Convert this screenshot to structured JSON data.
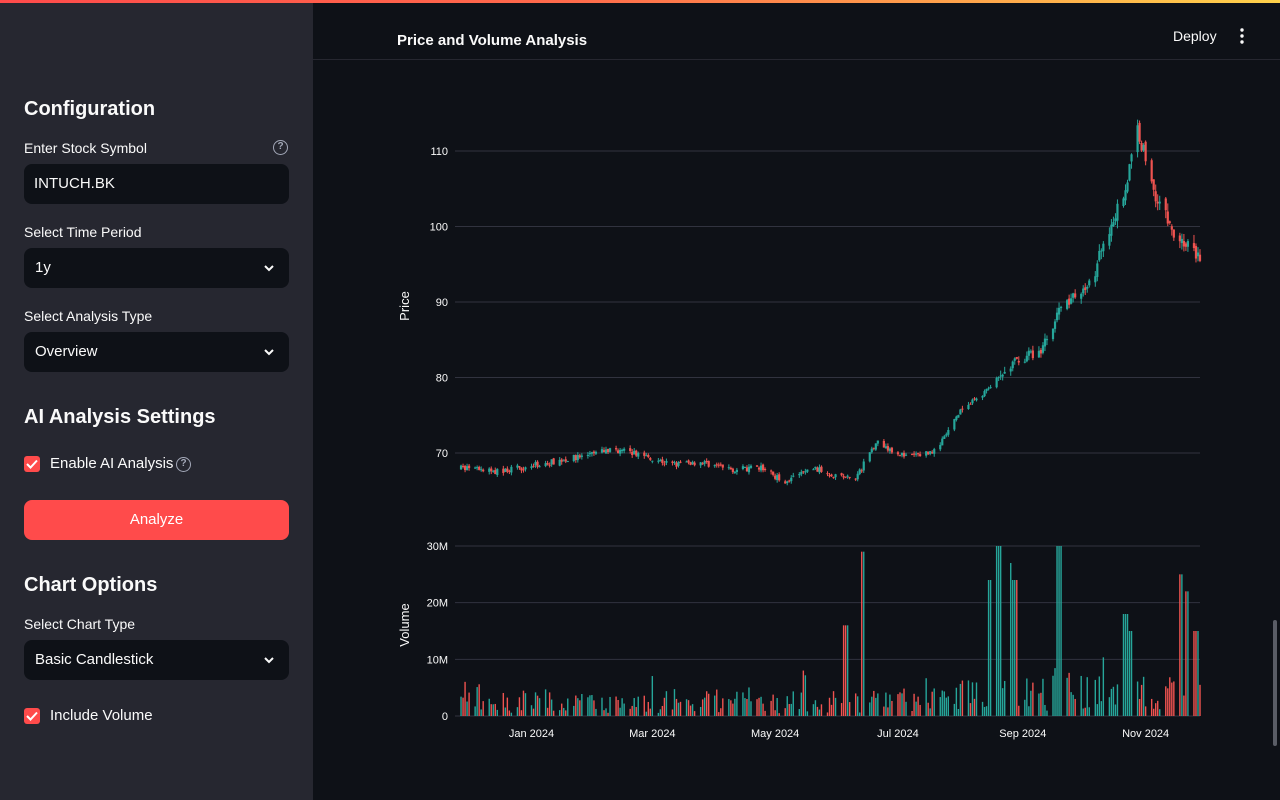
{
  "sidebar": {
    "configuration_heading": "Configuration",
    "stock_symbol_label": "Enter Stock Symbol",
    "stock_symbol_value": "INTUCH.BK",
    "time_period_label": "Select Time Period",
    "time_period_value": "1y",
    "analysis_type_label": "Select Analysis Type",
    "analysis_type_value": "Overview",
    "ai_heading": "AI Analysis Settings",
    "enable_ai_label": "Enable AI Analysis",
    "enable_ai_checked": true,
    "analyze_button": "Analyze",
    "chart_options_heading": "Chart Options",
    "chart_type_label": "Select Chart Type",
    "chart_type_value": "Basic Candlestick",
    "include_volume_label": "Include Volume",
    "include_volume_checked": true
  },
  "header": {
    "title": "Price and Volume Analysis",
    "deploy_label": "Deploy"
  },
  "chart_data": {
    "type": "candlestick",
    "price_axis": {
      "label": "Price",
      "ticks": [
        70,
        80,
        90,
        100,
        110
      ],
      "range": [
        63.5,
        116
      ]
    },
    "volume_axis": {
      "label": "Volume",
      "ticks": [
        0,
        10000000,
        20000000,
        30000000
      ],
      "tick_labels": [
        "0",
        "10M",
        "20M",
        "30M"
      ],
      "range": [
        0,
        30000000
      ]
    },
    "x_axis": {
      "tick_labels": [
        "Jan 2024",
        "Mar 2024",
        "May 2024",
        "Jul 2024",
        "Sep 2024",
        "Nov 2024"
      ]
    },
    "x_range": [
      "2023-11-24",
      "2024-11-28"
    ],
    "x_tick_dates": [
      "2024-01-01",
      "2024-03-01",
      "2024-05-01",
      "2024-07-01",
      "2024-09-01",
      "2024-11-01"
    ],
    "colors": {
      "up": "#26a69a",
      "down": "#ef5350",
      "grid": "#31333f",
      "text": "#fafafa"
    },
    "anchors": [
      [
        "2023-11-27",
        68.0
      ],
      [
        "2023-12-15",
        67.5
      ],
      [
        "2024-01-05",
        68.5
      ],
      [
        "2024-01-25",
        69.5
      ],
      [
        "2024-02-10",
        70.5
      ],
      [
        "2024-02-25",
        69.8
      ],
      [
        "2024-03-10",
        68.5
      ],
      [
        "2024-03-25",
        68.8
      ],
      [
        "2024-04-10",
        67.8
      ],
      [
        "2024-04-25",
        68.0
      ],
      [
        "2024-05-05",
        66.2
      ],
      [
        "2024-05-20",
        68.0
      ],
      [
        "2024-06-01",
        67.0
      ],
      [
        "2024-06-10",
        66.5
      ],
      [
        "2024-06-20",
        71.5
      ],
      [
        "2024-07-05",
        69.5
      ],
      [
        "2024-07-20",
        70.3
      ],
      [
        "2024-08-01",
        75.5
      ],
      [
        "2024-08-15",
        78.5
      ],
      [
        "2024-08-30",
        82.5
      ],
      [
        "2024-09-10",
        83.5
      ],
      [
        "2024-09-20",
        89.5
      ],
      [
        "2024-10-05",
        92.5
      ],
      [
        "2024-10-15",
        100.5
      ],
      [
        "2024-10-22",
        105.0
      ],
      [
        "2024-10-28",
        113.0
      ],
      [
        "2024-11-05",
        105.0
      ],
      [
        "2024-11-15",
        99.0
      ],
      [
        "2024-11-28",
        96.0
      ]
    ],
    "volume_spikes": [
      [
        "2024-06-14",
        29000000
      ],
      [
        "2024-08-20",
        30000000
      ],
      [
        "2024-09-19",
        30000000
      ],
      [
        "2024-08-25",
        27000000
      ],
      [
        "2024-11-18",
        25000000
      ],
      [
        "2024-11-22",
        22000000
      ],
      [
        "2024-08-16",
        24000000
      ],
      [
        "2024-10-22",
        18000000
      ],
      [
        "2024-08-28",
        24000000
      ],
      [
        "2024-06-05",
        16000000
      ],
      [
        "2024-10-25",
        15000000
      ],
      [
        "2024-11-26",
        15000000
      ]
    ]
  }
}
